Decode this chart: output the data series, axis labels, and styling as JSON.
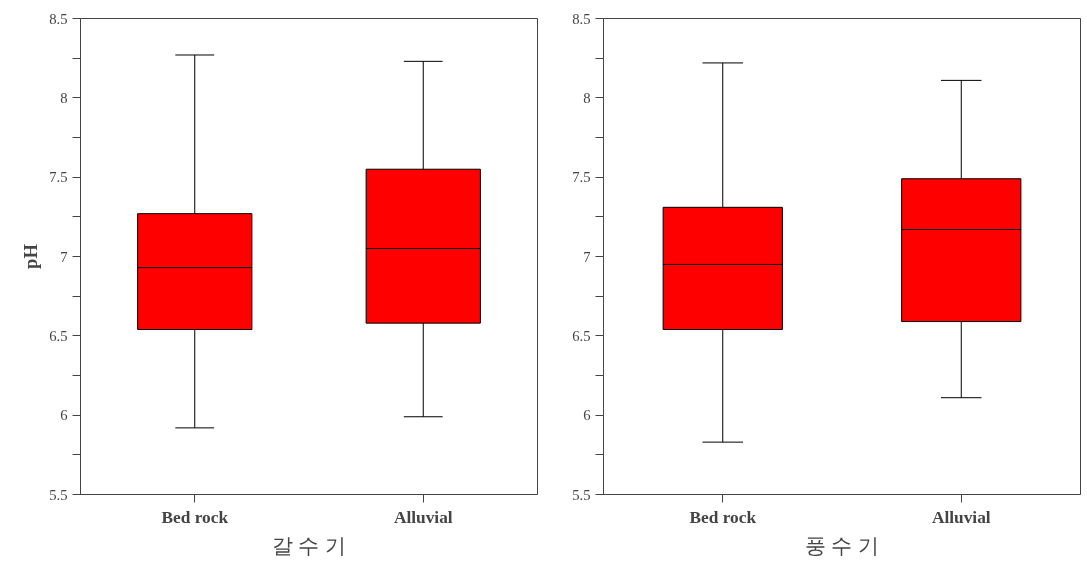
{
  "chart_data": [
    {
      "type": "box",
      "xlabel": "갈 수 기",
      "ylabel": "pH",
      "categories": [
        "Bed rock",
        "Alluvial"
      ],
      "series": [
        {
          "color": "#ff0000",
          "boxes": [
            {
              "low": 5.92,
              "q1": 6.54,
              "median": 6.93,
              "q3": 7.27,
              "high": 8.27
            },
            {
              "low": 5.99,
              "q1": 6.58,
              "median": 7.05,
              "q3": 7.55,
              "high": 8.23
            }
          ]
        }
      ],
      "ylim": [
        5.5,
        8.5
      ],
      "yticks": [
        5.5,
        {
          "value": 5.75,
          "label": null
        },
        6,
        {
          "value": 6.25,
          "label": null
        },
        6.5,
        {
          "value": 6.75,
          "label": null
        },
        7,
        {
          "value": 7.25,
          "label": null
        },
        7.5,
        {
          "value": 7.75,
          "label": null
        },
        8,
        {
          "value": 8.25,
          "label": null
        },
        8.5
      ],
      "grid": false
    },
    {
      "type": "box",
      "xlabel": "풍 수 기",
      "categories": [
        "Bed rock",
        "Alluvial"
      ],
      "series": [
        {
          "color": "#ff0000",
          "boxes": [
            {
              "low": 5.83,
              "q1": 6.54,
              "median": 6.95,
              "q3": 7.31,
              "high": 8.22
            },
            {
              "low": 6.11,
              "q1": 6.59,
              "median": 7.17,
              "q3": 7.49,
              "high": 8.11
            }
          ]
        }
      ],
      "ylim": [
        5.5,
        8.5
      ],
      "yticks": [
        5.5,
        {
          "value": 5.75,
          "label": null
        },
        6,
        {
          "value": 6.25,
          "label": null
        },
        6.5,
        {
          "value": 6.75,
          "label": null
        },
        7,
        {
          "value": 7.25,
          "label": null
        },
        7.5,
        {
          "value": 7.75,
          "label": null
        },
        8,
        {
          "value": 8.25,
          "label": null
        },
        8.5
      ],
      "grid": false
    }
  ]
}
